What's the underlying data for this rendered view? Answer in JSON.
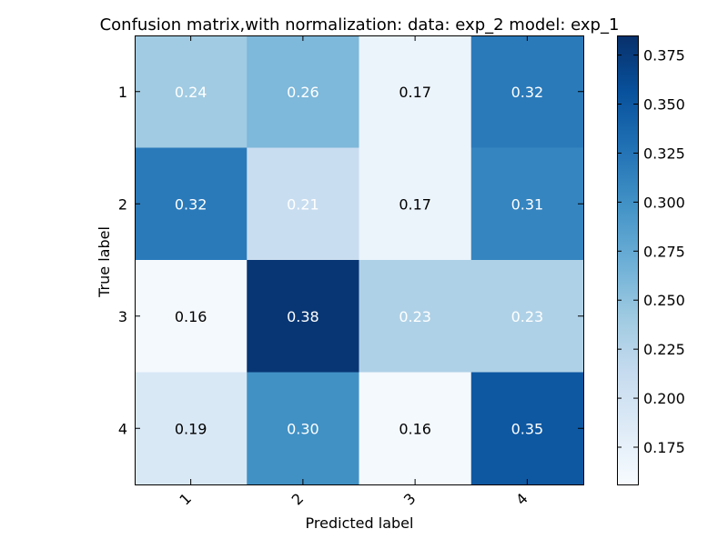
{
  "chart_data": {
    "type": "heatmap",
    "title": "Confusion matrix,with normalization: data: exp_2 model: exp_1",
    "xlabel": "Predicted label",
    "ylabel": "True label",
    "x_categories": [
      "1",
      "2",
      "3",
      "4"
    ],
    "y_categories": [
      "1",
      "2",
      "3",
      "4"
    ],
    "values": [
      [
        0.24,
        0.26,
        0.17,
        0.32
      ],
      [
        0.32,
        0.21,
        0.17,
        0.31
      ],
      [
        0.16,
        0.38,
        0.23,
        0.23
      ],
      [
        0.19,
        0.3,
        0.16,
        0.35
      ]
    ],
    "value_labels": [
      [
        "0.24",
        "0.26",
        "0.17",
        "0.32"
      ],
      [
        "0.32",
        "0.21",
        "0.17",
        "0.31"
      ],
      [
        "0.16",
        "0.38",
        "0.23",
        "0.23"
      ],
      [
        "0.19",
        "0.30",
        "0.16",
        "0.35"
      ]
    ],
    "colormap": "Blues",
    "colormap_stops": [
      "#f7fbff",
      "#deebf7",
      "#c6dbef",
      "#9ecae1",
      "#6baed6",
      "#4292c6",
      "#2171b5",
      "#08519c",
      "#08306b"
    ],
    "color_range": [
      0.156,
      0.385
    ],
    "colorbar_ticks": [
      0.175,
      0.2,
      0.225,
      0.25,
      0.275,
      0.3,
      0.325,
      0.35,
      0.375
    ],
    "colorbar_tick_labels": [
      "0.175",
      "0.200",
      "0.225",
      "0.250",
      "0.275",
      "0.300",
      "0.325",
      "0.350",
      "0.375"
    ],
    "text_threshold": 0.195,
    "text_color_dark": "#000000",
    "text_color_light": "#ffffff",
    "colorbar_position": "right",
    "grid": false
  }
}
